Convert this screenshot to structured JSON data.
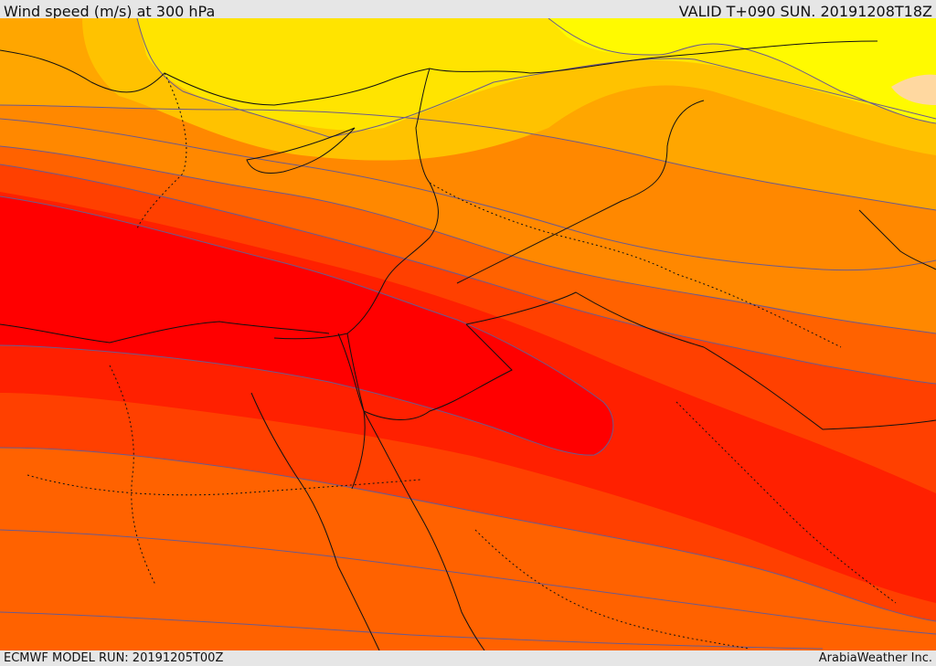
{
  "header": {
    "title": "Wind speed (m/s) at 300 hPa",
    "valid": "VALID T+090 SUN. 20191208T18Z"
  },
  "footer": {
    "model_run": "ECMWF MODEL RUN: 20191205T00Z",
    "credit": "ArabiaWeather Inc."
  },
  "map": {
    "variable": "wind-speed",
    "level_hpa": 300,
    "units": "m/s",
    "colors": {
      "band1": "#ffe400",
      "band2": "#ffc200",
      "band3": "#ffa600",
      "band4": "#ff8800",
      "band5": "#ff6200",
      "band6": "#ff4000",
      "band7": "#ff2000",
      "band8": "#ff0000",
      "peak": "#fffa00",
      "highlight": "#ffd8a0"
    }
  }
}
